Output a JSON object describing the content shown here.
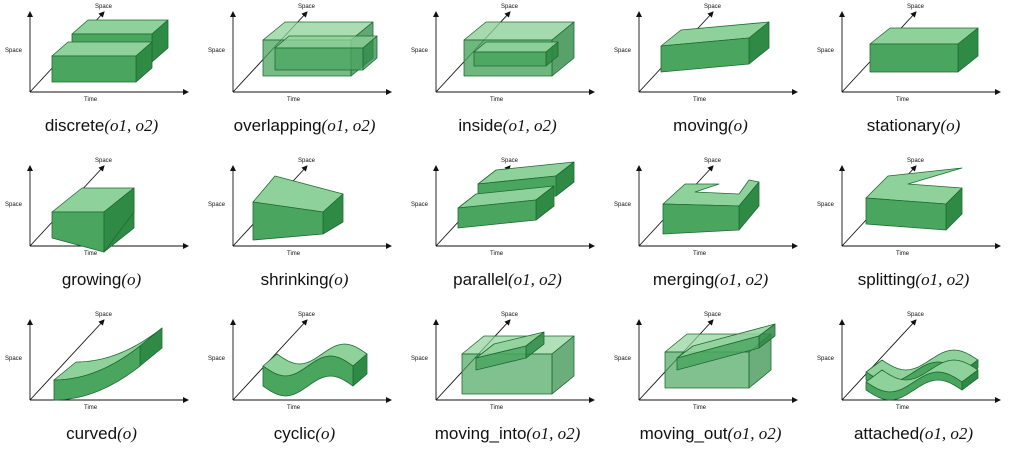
{
  "axis_labels": {
    "space_left": "Space",
    "space_depth": "Space",
    "time": "Time"
  },
  "colors": {
    "top": "#8fd19a",
    "front": "#4aa65f",
    "side": "#2e8a45",
    "stroke": "#1d6b32",
    "axis": "#111111"
  },
  "cells": [
    {
      "id": "discrete",
      "func": "discrete",
      "args": "(o1, o2)",
      "icon": "two-separate-boxes-icon"
    },
    {
      "id": "overlapping",
      "func": "overlapping",
      "args": "(o1, o2)",
      "icon": "overlapping-boxes-icon"
    },
    {
      "id": "inside",
      "func": "inside",
      "args": "(o1, o2)",
      "icon": "nested-box-icon"
    },
    {
      "id": "moving",
      "func": "moving",
      "args": "(o)",
      "icon": "rising-box-icon"
    },
    {
      "id": "stationary",
      "func": "stationary",
      "args": "(o)",
      "icon": "flat-box-icon"
    },
    {
      "id": "growing",
      "func": "growing",
      "args": "(o)",
      "icon": "widening-box-icon"
    },
    {
      "id": "shrinking",
      "func": "shrinking",
      "args": "(o)",
      "icon": "narrowing-box-icon"
    },
    {
      "id": "parallel",
      "func": "parallel",
      "args": "(o1, o2)",
      "icon": "parallel-boxes-icon"
    },
    {
      "id": "merging",
      "func": "merging",
      "args": "(o1, o2)",
      "icon": "merging-box-icon"
    },
    {
      "id": "splitting",
      "func": "splitting",
      "args": "(o1, o2)",
      "icon": "splitting-box-icon"
    },
    {
      "id": "curved",
      "func": "curved",
      "args": "(o)",
      "icon": "curved-band-icon"
    },
    {
      "id": "cyclic",
      "func": "cyclic",
      "args": "(o)",
      "icon": "wavy-band-icon"
    },
    {
      "id": "moving_into",
      "func": "moving_into",
      "args": "(o1, o2)",
      "icon": "moving-into-box-icon"
    },
    {
      "id": "moving_out",
      "func": "moving_out",
      "args": "(o1, o2)",
      "icon": "moving-out-box-icon"
    },
    {
      "id": "attached",
      "func": "attached",
      "args": "(o1, o2)",
      "icon": "stacked-wavy-bands-icon"
    }
  ]
}
